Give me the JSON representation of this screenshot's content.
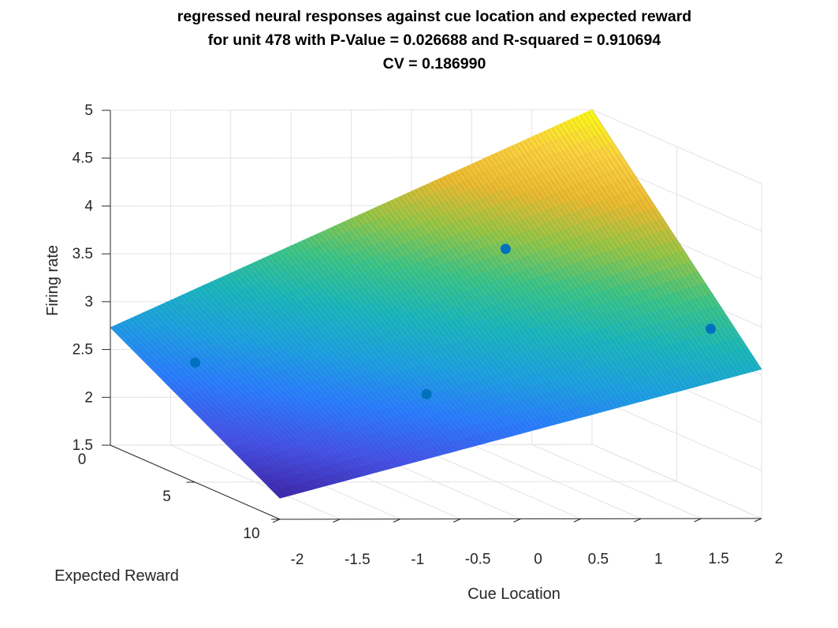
{
  "chart_data": {
    "type": "surface",
    "title": [
      "regressed neural responses against cue location and expected reward",
      "for unit 478 with P-Value = 0.026688 and R-squared = 0.910694",
      "CV = 0.186990"
    ],
    "xlabel": "Cue Location",
    "ylabel": "Expected Reward",
    "zlabel": "Firing rate",
    "x_ticks": [
      "-2",
      "-1.5",
      "-1",
      "-0.5",
      "0",
      "0.5",
      "1",
      "1.5",
      "2"
    ],
    "y_ticks": [
      "0",
      "5",
      "10"
    ],
    "z_ticks": [
      "1.5",
      "2",
      "2.5",
      "3",
      "3.5",
      "4",
      "4.5",
      "5"
    ],
    "xlim": [
      -2,
      2
    ],
    "ylim": [
      0,
      10
    ],
    "zlim": [
      1.5,
      5
    ],
    "grid": true,
    "colormap": "parula",
    "colormap_stops": [
      "#3e26a8",
      "#4653e6",
      "#2c7dfe",
      "#1ea2e0",
      "#1cb7bc",
      "#3dc587",
      "#97c646",
      "#ebba30",
      "#fbd13f",
      "#f9fb15"
    ],
    "surface": {
      "z_at_corners": {
        "x=-2,y=0": 2.73,
        "x=2,y=0": 5.0,
        "x=-2,y=10": 1.72,
        "x=2,y=10": 3.06
      }
    },
    "points": [
      {
        "x": -2,
        "y": 5,
        "z": 2.75
      },
      {
        "x": -0.5,
        "y": 8,
        "z": 2.65
      },
      {
        "x": 1,
        "y": 2,
        "z": 3.7
      },
      {
        "x": 2,
        "y": 7,
        "z": 3.25
      }
    ],
    "marker_color": "#0072bd"
  }
}
